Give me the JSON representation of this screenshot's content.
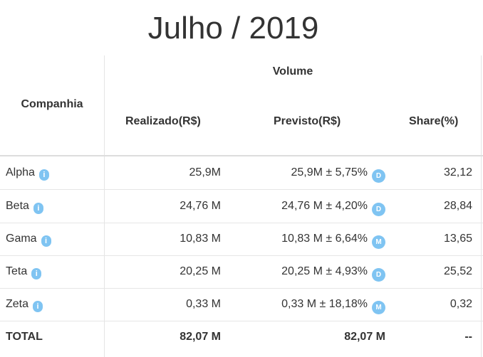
{
  "title": "Julho / 2019",
  "headers": {
    "company": "Companhia",
    "volume": "Volume",
    "realizado": "Realizado(R$)",
    "previsto": "Previsto(R$)",
    "share": "Share(%)"
  },
  "rows": [
    {
      "name": "Alpha",
      "info": "i",
      "realizado": "25,9M",
      "previsto": "25,9M ± 5,75%",
      "badge": "D",
      "share": "32,12"
    },
    {
      "name": "Beta",
      "info": "i",
      "realizado": "24,76 M",
      "previsto": "24,76 M ± 4,20%",
      "badge": "D",
      "share": "28,84"
    },
    {
      "name": "Gama",
      "info": "i",
      "realizado": "10,83 M",
      "previsto": "10,83 M ± 6,64%",
      "badge": "M",
      "share": "13,65"
    },
    {
      "name": "Teta",
      "info": "i",
      "realizado": "20,25 M",
      "previsto": "20,25 M ± 4,93%",
      "badge": "D",
      "share": "25,52"
    },
    {
      "name": "Zeta",
      "info": "i",
      "realizado": "0,33 M",
      "previsto": "0,33 M ± 18,18%",
      "badge": "M",
      "share": "0,32"
    }
  ],
  "total": {
    "label": "TOTAL",
    "realizado": "82,07 M",
    "previsto": "82,07 M",
    "share": "--"
  },
  "colors": {
    "badge": "#7fc4f2",
    "text": "#333333",
    "border": "#e6e6e6"
  },
  "icons": {
    "info": "info-icon",
    "badge": "forecast-type-badge"
  }
}
